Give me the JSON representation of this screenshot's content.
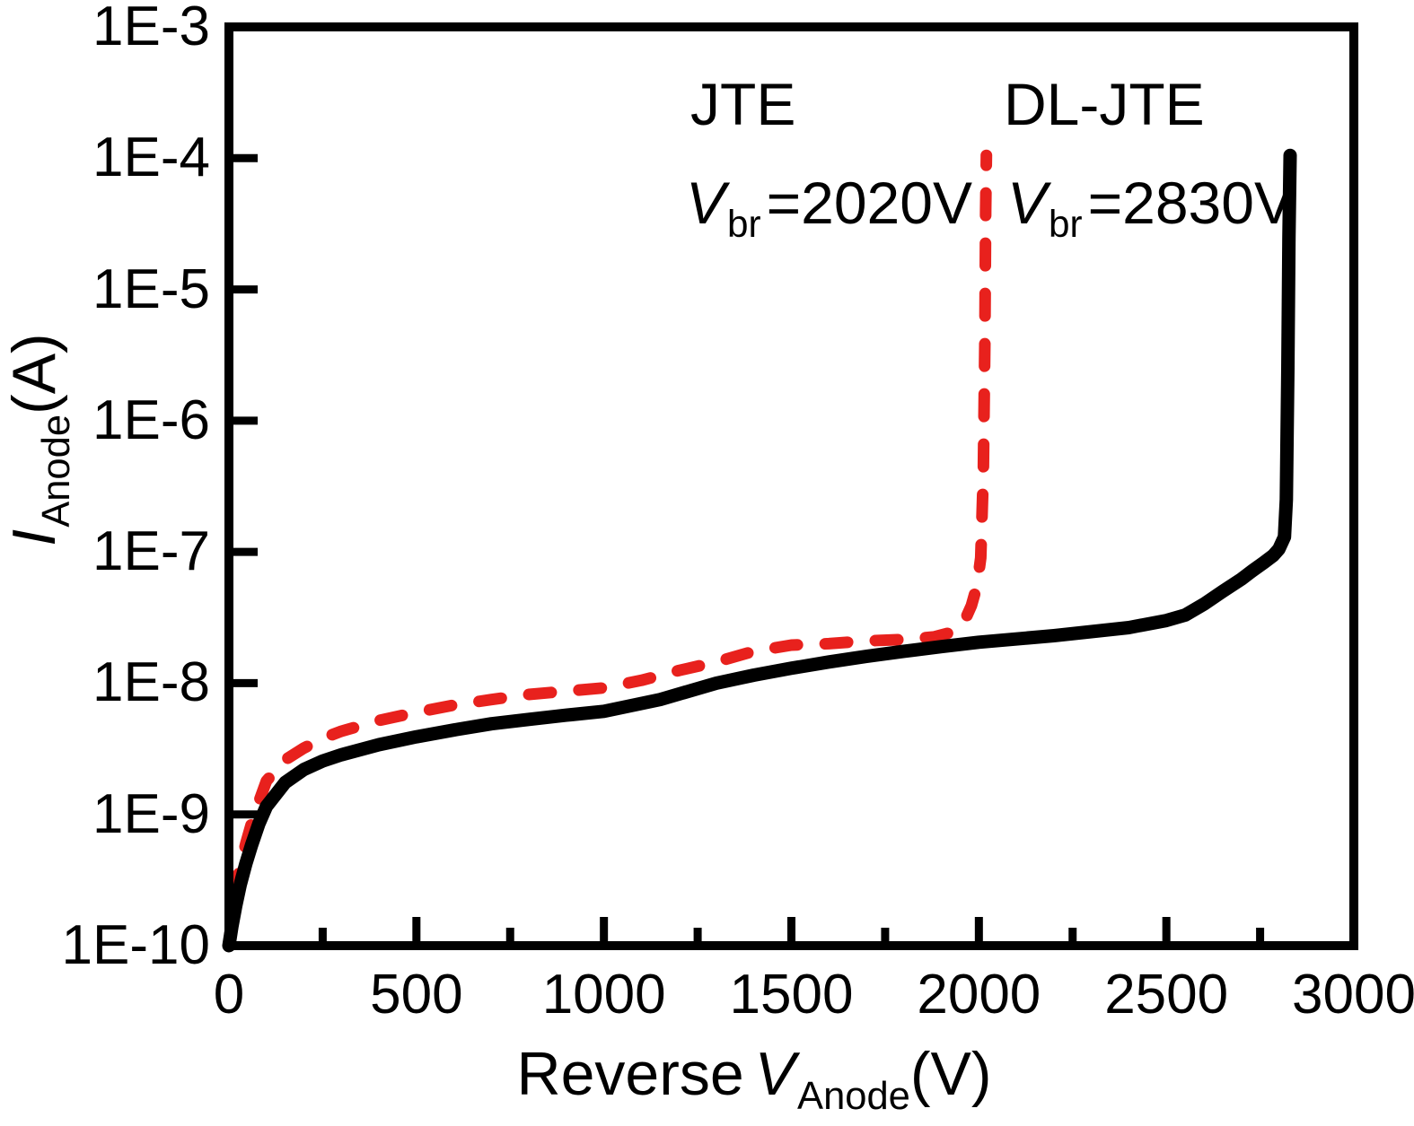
{
  "figure": {
    "background": "#ffffff",
    "frame_color": "#000000"
  },
  "axes": {
    "y_label": {
      "symbol": "I",
      "sub": "Anode",
      "unit": "(A)"
    },
    "x_label": {
      "prefix": "Reverse",
      "symbol": "V",
      "sub": "Anode",
      "unit": "(V)"
    }
  },
  "annotations": {
    "jte_label": "JTE",
    "dljte_label": "DL-JTE",
    "jte_vbr": {
      "symbol": "V",
      "sub": "br",
      "value": "=2020V"
    },
    "dljte_vbr": {
      "symbol": "V",
      "sub": "br",
      "value": "=2830V"
    }
  },
  "chart_data": {
    "type": "line",
    "title": "",
    "xlabel": "Reverse V_Anode (V)",
    "ylabel": "I_Anode (A)",
    "grid": false,
    "x_axis": {
      "min": 0,
      "max": 3000,
      "major_ticks": [
        0,
        500,
        1000,
        1500,
        2000,
        2500,
        3000
      ],
      "minor_ticks": [
        250,
        750,
        1250,
        1750,
        2250,
        2750
      ]
    },
    "y_axis": {
      "scale": "log",
      "min": 1e-10,
      "max": 0.001,
      "ticks": [
        {
          "label": "1E-3",
          "exp": -3
        },
        {
          "label": "1E-4",
          "exp": -4
        },
        {
          "label": "1E-5",
          "exp": -5
        },
        {
          "label": "1E-6",
          "exp": -6
        },
        {
          "label": "1E-7",
          "exp": -7
        },
        {
          "label": "1E-8",
          "exp": -8
        },
        {
          "label": "1E-9",
          "exp": -9
        },
        {
          "label": "1E-10",
          "exp": -10
        }
      ]
    },
    "series": [
      {
        "name": "JTE",
        "color": "#e8211d",
        "style": "dashed",
        "breakdown_voltage_V": 2020,
        "points": [
          [
            0,
            1e-10
          ],
          [
            8,
            1.7e-10
          ],
          [
            18,
            2.7e-10
          ],
          [
            30,
            4e-10
          ],
          [
            45,
            6e-10
          ],
          [
            60,
            8.5e-10
          ],
          [
            80,
            1.25e-09
          ],
          [
            100,
            1.8e-09
          ],
          [
            150,
            2.6e-09
          ],
          [
            200,
            3.2e-09
          ],
          [
            250,
            3.8e-09
          ],
          [
            300,
            4.3e-09
          ],
          [
            400,
            5.2e-09
          ],
          [
            500,
            6e-09
          ],
          [
            600,
            6.8e-09
          ],
          [
            700,
            7.5e-09
          ],
          [
            800,
            8.2e-09
          ],
          [
            900,
            8.7e-09
          ],
          [
            1000,
            9.2e-09
          ],
          [
            1100,
            1.05e-08
          ],
          [
            1200,
            1.25e-08
          ],
          [
            1300,
            1.45e-08
          ],
          [
            1400,
            1.75e-08
          ],
          [
            1500,
            1.95e-08
          ],
          [
            1600,
            2e-08
          ],
          [
            1700,
            2.1e-08
          ],
          [
            1800,
            2.15e-08
          ],
          [
            1880,
            2.25e-08
          ],
          [
            1930,
            2.45e-08
          ],
          [
            1960,
            2.9e-08
          ],
          [
            1980,
            3.9e-08
          ],
          [
            1995,
            5.5e-08
          ],
          [
            2005,
            9e-08
          ],
          [
            2012,
            4e-07
          ],
          [
            2016,
            4e-06
          ],
          [
            2018,
            4e-05
          ],
          [
            2020,
            0.000105
          ]
        ]
      },
      {
        "name": "DL-JTE",
        "color": "#000000",
        "style": "solid",
        "breakdown_voltage_V": 2830,
        "points": [
          [
            0,
            1e-10
          ],
          [
            8,
            1.4e-10
          ],
          [
            18,
            2e-10
          ],
          [
            30,
            2.9e-10
          ],
          [
            45,
            4.2e-10
          ],
          [
            60,
            5.8e-10
          ],
          [
            80,
            8.5e-10
          ],
          [
            100,
            1.15e-09
          ],
          [
            150,
            1.75e-09
          ],
          [
            200,
            2.2e-09
          ],
          [
            250,
            2.55e-09
          ],
          [
            300,
            2.85e-09
          ],
          [
            400,
            3.4e-09
          ],
          [
            500,
            3.9e-09
          ],
          [
            600,
            4.4e-09
          ],
          [
            700,
            4.9e-09
          ],
          [
            800,
            5.3e-09
          ],
          [
            900,
            5.7e-09
          ],
          [
            1000,
            6.1e-09
          ],
          [
            1150,
            7.5e-09
          ],
          [
            1300,
            1e-08
          ],
          [
            1400,
            1.15e-08
          ],
          [
            1500,
            1.3e-08
          ],
          [
            1600,
            1.45e-08
          ],
          [
            1700,
            1.6e-08
          ],
          [
            1800,
            1.75e-08
          ],
          [
            1900,
            1.9e-08
          ],
          [
            2000,
            2.05e-08
          ],
          [
            2200,
            2.3e-08
          ],
          [
            2400,
            2.65e-08
          ],
          [
            2500,
            3e-08
          ],
          [
            2550,
            3.3e-08
          ],
          [
            2600,
            4e-08
          ],
          [
            2650,
            5e-08
          ],
          [
            2700,
            6.2e-08
          ],
          [
            2730,
            7.2e-08
          ],
          [
            2760,
            8.3e-08
          ],
          [
            2785,
            9.4e-08
          ],
          [
            2800,
            1.05e-07
          ],
          [
            2815,
            1.3e-07
          ],
          [
            2820,
            2.5e-07
          ],
          [
            2824,
            2.5e-06
          ],
          [
            2827,
            2.5e-05
          ],
          [
            2830,
            0.000105
          ]
        ]
      }
    ]
  }
}
